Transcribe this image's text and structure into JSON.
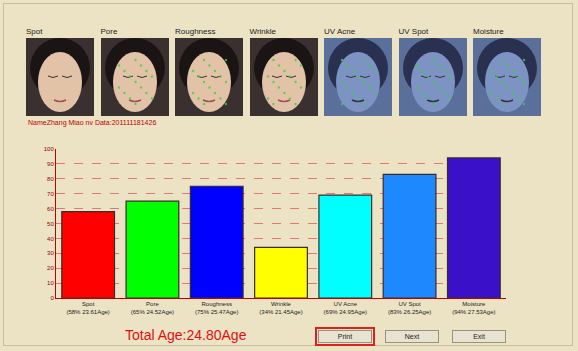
{
  "panels": [
    "Spot",
    "Pore",
    "Roughness",
    "Wrinkle",
    "UV Acne",
    "UV Spot",
    "Moisture"
  ],
  "caption": "NameZhang Miao nv Data:201111181426",
  "chart_data": {
    "type": "bar",
    "categories": [
      "Spot\n(58% 23.61Age)",
      "Pore\n(65% 24.52Age)",
      "Roughness\n(75% 25.47Age)",
      "Wrinkle\n(34% 21.45Age)",
      "UV Acne\n(69% 24.95Age)",
      "UV Spot\n(83% 26.25Age)",
      "Moisture\n(94% 27.53Age)"
    ],
    "values": [
      58,
      65,
      75,
      34,
      69,
      83,
      94
    ],
    "colors": [
      "#ff0000",
      "#00ff00",
      "#0000ff",
      "#ffff00",
      "#00ffff",
      "#1e88ff",
      "#3a10c8"
    ],
    "ylim": [
      0,
      100
    ],
    "yticks": [
      0,
      10,
      20,
      30,
      40,
      50,
      60,
      70,
      80,
      90,
      100
    ],
    "grid": true
  },
  "total": "Total Age:24.80Age",
  "buttons": [
    "Print",
    "Next",
    "Exit"
  ]
}
